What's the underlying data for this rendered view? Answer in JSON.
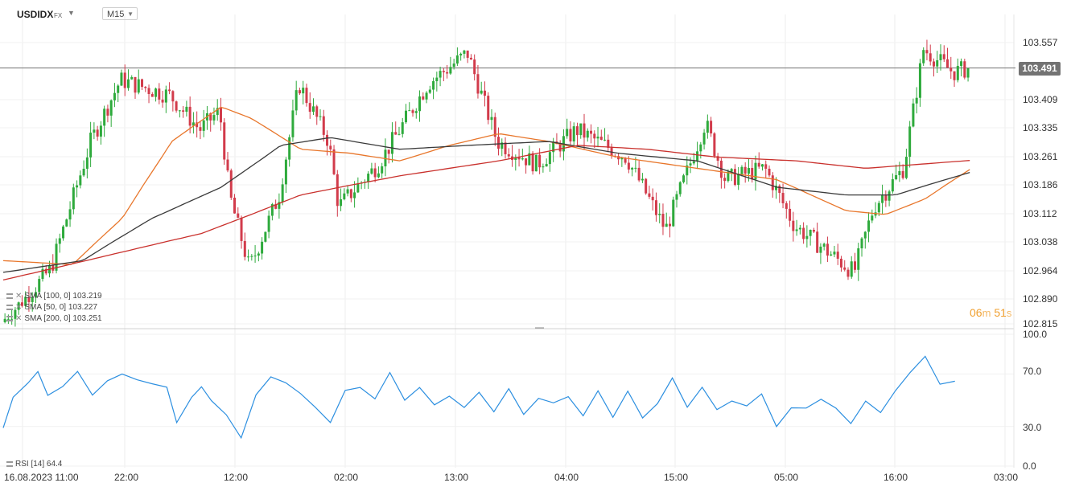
{
  "header": {
    "symbol": "USDIDX",
    "symbol_type": "FX",
    "timeframe": "M15"
  },
  "price_axis": {
    "labels": [
      "103.557",
      "103.409",
      "103.335",
      "103.261",
      "103.186",
      "103.112",
      "103.038",
      "102.964",
      "102.890",
      "102.815"
    ],
    "current_price": "103.491"
  },
  "rsi_axis": {
    "labels": [
      "100.0",
      "70.0",
      "30.0",
      "0.0"
    ]
  },
  "time_axis": {
    "labels": [
      "16.08.2023  11:00",
      "22:00",
      "12:00",
      "02:00",
      "13:00",
      "04:00",
      "15:00",
      "05:00",
      "16:00",
      "03:00"
    ]
  },
  "candle_timer": {
    "minutes": "06",
    "minutes_unit": "m",
    "seconds": "51",
    "seconds_unit": "s"
  },
  "legend": {
    "sma100": "SMA [100,  0]  103.219",
    "sma50": "SMA [50,  0]  103.227",
    "sma200": "SMA [200,  0]  103.251",
    "rsi": "RSI [14]  64.4"
  },
  "colors": {
    "up": "#2eaa3c",
    "down": "#d23b4b",
    "sma50": "#e8762b",
    "sma100": "#3a3a3a",
    "sma200": "#c9302c",
    "rsi": "#2c8fe0",
    "price_line": "#737373"
  },
  "chart_data": [
    {
      "type": "candlestick",
      "title": "USDIDX",
      "timeframe": "M15",
      "x_tick_labels": [
        "16.08.2023 11:00",
        "22:00",
        "12:00",
        "02:00",
        "13:00",
        "04:00",
        "15:00",
        "05:00",
        "16:00",
        "03:00"
      ],
      "ylim": [
        102.815,
        103.6
      ],
      "last_price": 103.491,
      "price_path": [
        {
          "t": 0,
          "price": 102.82
        },
        {
          "t": 0.05,
          "price": 102.97
        },
        {
          "t": 0.09,
          "price": 103.3
        },
        {
          "t": 0.12,
          "price": 103.46
        },
        {
          "t": 0.17,
          "price": 103.42
        },
        {
          "t": 0.2,
          "price": 103.33
        },
        {
          "t": 0.22,
          "price": 103.38
        },
        {
          "t": 0.23,
          "price": 103.16
        },
        {
          "t": 0.25,
          "price": 102.97
        },
        {
          "t": 0.28,
          "price": 103.16
        },
        {
          "t": 0.3,
          "price": 103.45
        },
        {
          "t": 0.33,
          "price": 103.3
        },
        {
          "t": 0.34,
          "price": 103.13
        },
        {
          "t": 0.38,
          "price": 103.24
        },
        {
          "t": 0.43,
          "price": 103.45
        },
        {
          "t": 0.47,
          "price": 103.53
        },
        {
          "t": 0.5,
          "price": 103.3
        },
        {
          "t": 0.54,
          "price": 103.24
        },
        {
          "t": 0.58,
          "price": 103.33
        },
        {
          "t": 0.63,
          "price": 103.26
        },
        {
          "t": 0.67,
          "price": 103.07
        },
        {
          "t": 0.71,
          "price": 103.35
        },
        {
          "t": 0.73,
          "price": 103.2
        },
        {
          "t": 0.77,
          "price": 103.23
        },
        {
          "t": 0.8,
          "price": 103.08
        },
        {
          "t": 0.84,
          "price": 103.0
        },
        {
          "t": 0.86,
          "price": 102.96
        },
        {
          "t": 0.88,
          "price": 103.13
        },
        {
          "t": 0.91,
          "price": 103.23
        },
        {
          "t": 0.93,
          "price": 103.54
        },
        {
          "t": 0.96,
          "price": 103.48
        },
        {
          "t": 0.975,
          "price": 103.49
        }
      ],
      "series": [
        {
          "name": "SMA [50, 0]",
          "last": 103.227,
          "path": [
            {
              "t": 0,
              "v": 102.99
            },
            {
              "t": 0.07,
              "v": 102.98
            },
            {
              "t": 0.12,
              "v": 103.1
            },
            {
              "t": 0.17,
              "v": 103.3
            },
            {
              "t": 0.22,
              "v": 103.39
            },
            {
              "t": 0.25,
              "v": 103.36
            },
            {
              "t": 0.3,
              "v": 103.28
            },
            {
              "t": 0.35,
              "v": 103.27
            },
            {
              "t": 0.4,
              "v": 103.25
            },
            {
              "t": 0.45,
              "v": 103.29
            },
            {
              "t": 0.5,
              "v": 103.32
            },
            {
              "t": 0.55,
              "v": 103.3
            },
            {
              "t": 0.62,
              "v": 103.26
            },
            {
              "t": 0.7,
              "v": 103.23
            },
            {
              "t": 0.78,
              "v": 103.2
            },
            {
              "t": 0.85,
              "v": 103.12
            },
            {
              "t": 0.89,
              "v": 103.11
            },
            {
              "t": 0.93,
              "v": 103.15
            },
            {
              "t": 0.975,
              "v": 103.227
            }
          ]
        },
        {
          "name": "SMA [100, 0]",
          "last": 103.219,
          "path": [
            {
              "t": 0,
              "v": 102.96
            },
            {
              "t": 0.08,
              "v": 102.99
            },
            {
              "t": 0.15,
              "v": 103.1
            },
            {
              "t": 0.22,
              "v": 103.18
            },
            {
              "t": 0.28,
              "v": 103.29
            },
            {
              "t": 0.33,
              "v": 103.31
            },
            {
              "t": 0.4,
              "v": 103.28
            },
            {
              "t": 0.47,
              "v": 103.29
            },
            {
              "t": 0.55,
              "v": 103.3
            },
            {
              "t": 0.62,
              "v": 103.27
            },
            {
              "t": 0.7,
              "v": 103.25
            },
            {
              "t": 0.78,
              "v": 103.18
            },
            {
              "t": 0.85,
              "v": 103.16
            },
            {
              "t": 0.9,
              "v": 103.16
            },
            {
              "t": 0.975,
              "v": 103.219
            }
          ]
        },
        {
          "name": "SMA [200, 0]",
          "last": 103.251,
          "path": [
            {
              "t": 0,
              "v": 102.94
            },
            {
              "t": 0.1,
              "v": 103.0
            },
            {
              "t": 0.2,
              "v": 103.06
            },
            {
              "t": 0.3,
              "v": 103.16
            },
            {
              "t": 0.4,
              "v": 103.21
            },
            {
              "t": 0.5,
              "v": 103.25
            },
            {
              "t": 0.58,
              "v": 103.29
            },
            {
              "t": 0.65,
              "v": 103.28
            },
            {
              "t": 0.72,
              "v": 103.26
            },
            {
              "t": 0.8,
              "v": 103.25
            },
            {
              "t": 0.87,
              "v": 103.23
            },
            {
              "t": 0.975,
              "v": 103.251
            }
          ]
        }
      ]
    },
    {
      "type": "line",
      "title": "RSI [14]",
      "ylim": [
        0,
        100
      ],
      "y_tick_labels": [
        "100.0",
        "70.0",
        "30.0",
        "0.0"
      ],
      "last_value": 64.4,
      "series": [
        {
          "name": "RSI [14]",
          "path": [
            {
              "t": 0,
              "v": 29
            },
            {
              "t": 0.01,
              "v": 50
            },
            {
              "t": 0.025,
              "v": 66
            },
            {
              "t": 0.035,
              "v": 70
            },
            {
              "t": 0.045,
              "v": 53
            },
            {
              "t": 0.06,
              "v": 63
            },
            {
              "t": 0.075,
              "v": 69
            },
            {
              "t": 0.09,
              "v": 55
            },
            {
              "t": 0.105,
              "v": 66
            },
            {
              "t": 0.12,
              "v": 67
            },
            {
              "t": 0.135,
              "v": 68
            },
            {
              "t": 0.15,
              "v": 62
            },
            {
              "t": 0.165,
              "v": 58
            },
            {
              "t": 0.175,
              "v": 36
            },
            {
              "t": 0.19,
              "v": 50
            },
            {
              "t": 0.2,
              "v": 60
            },
            {
              "t": 0.21,
              "v": 52
            },
            {
              "t": 0.225,
              "v": 36
            },
            {
              "t": 0.24,
              "v": 23
            },
            {
              "t": 0.255,
              "v": 55
            },
            {
              "t": 0.27,
              "v": 65
            },
            {
              "t": 0.285,
              "v": 66
            },
            {
              "t": 0.3,
              "v": 54
            },
            {
              "t": 0.315,
              "v": 43
            },
            {
              "t": 0.33,
              "v": 36
            },
            {
              "t": 0.345,
              "v": 55
            },
            {
              "t": 0.36,
              "v": 60
            },
            {
              "t": 0.375,
              "v": 53
            },
            {
              "t": 0.39,
              "v": 68
            },
            {
              "t": 0.405,
              "v": 52
            },
            {
              "t": 0.42,
              "v": 60
            },
            {
              "t": 0.435,
              "v": 44
            },
            {
              "t": 0.45,
              "v": 56
            },
            {
              "t": 0.465,
              "v": 43
            },
            {
              "t": 0.48,
              "v": 55
            },
            {
              "t": 0.495,
              "v": 44
            },
            {
              "t": 0.51,
              "v": 56
            },
            {
              "t": 0.525,
              "v": 40
            },
            {
              "t": 0.54,
              "v": 53
            },
            {
              "t": 0.555,
              "v": 45
            },
            {
              "t": 0.57,
              "v": 55
            },
            {
              "t": 0.585,
              "v": 38
            },
            {
              "t": 0.6,
              "v": 55
            },
            {
              "t": 0.615,
              "v": 40
            },
            {
              "t": 0.63,
              "v": 55
            },
            {
              "t": 0.645,
              "v": 36
            },
            {
              "t": 0.66,
              "v": 50
            },
            {
              "t": 0.675,
              "v": 64
            },
            {
              "t": 0.69,
              "v": 46
            },
            {
              "t": 0.705,
              "v": 61
            },
            {
              "t": 0.72,
              "v": 40
            },
            {
              "t": 0.735,
              "v": 52
            },
            {
              "t": 0.75,
              "v": 45
            },
            {
              "t": 0.765,
              "v": 53
            },
            {
              "t": 0.78,
              "v": 33
            },
            {
              "t": 0.795,
              "v": 42
            },
            {
              "t": 0.81,
              "v": 44
            },
            {
              "t": 0.825,
              "v": 53
            },
            {
              "t": 0.84,
              "v": 41
            },
            {
              "t": 0.855,
              "v": 34
            },
            {
              "t": 0.87,
              "v": 50
            },
            {
              "t": 0.885,
              "v": 38
            },
            {
              "t": 0.9,
              "v": 60
            },
            {
              "t": 0.915,
              "v": 70
            },
            {
              "t": 0.93,
              "v": 82
            },
            {
              "t": 0.945,
              "v": 65
            },
            {
              "t": 0.96,
              "v": 64.4
            }
          ]
        }
      ]
    }
  ]
}
